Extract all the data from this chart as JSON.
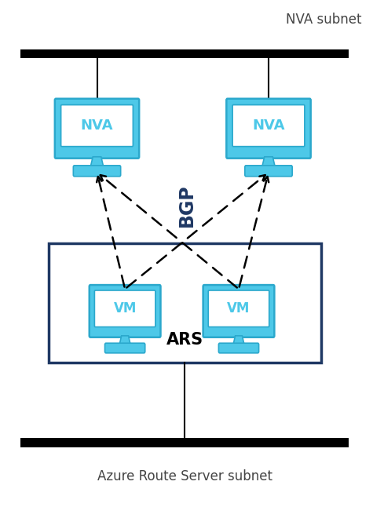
{
  "title_nva": "NVA subnet",
  "title_ars": "Azure Route Server subnet",
  "bgp_label": "BGP",
  "ars_label": "ARS",
  "nva_label": "NVA",
  "vm_label": "VM",
  "nva_color": "#4DC8E8",
  "nva_dark": "#2BA8CC",
  "ars_border_color": "#1F3864",
  "vm_color": "#4DC8E8",
  "vm_dark": "#2BA8CC",
  "arrow_color": "#000000",
  "border_color": "#000000",
  "text_color": "#444444",
  "bgp_color": "#1F3864",
  "fig_width": 4.75,
  "fig_height": 6.46,
  "dpi": 100
}
